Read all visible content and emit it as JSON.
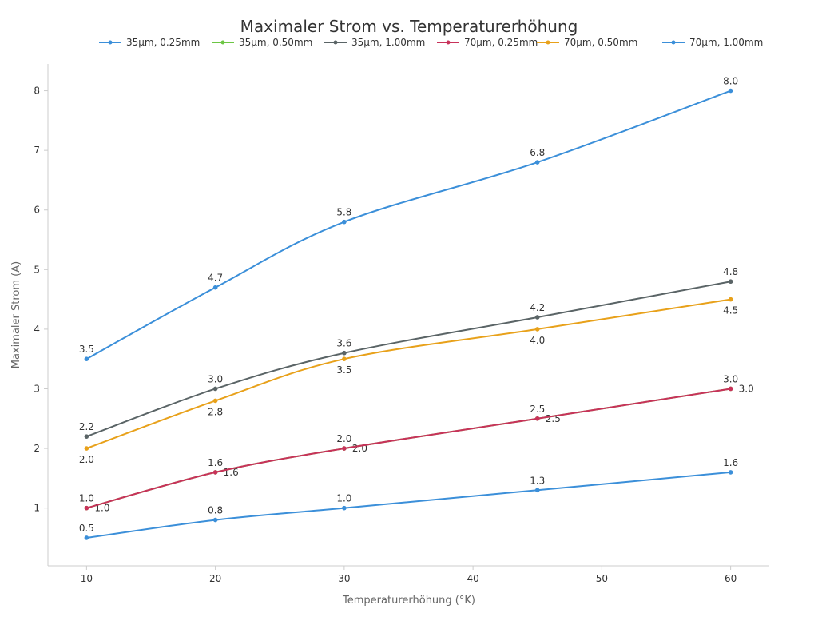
{
  "chart_data": {
    "type": "line",
    "title": "Maximaler Strom vs. Temperaturerhöhung",
    "xlabel": "Temperaturerhöhung (°K)",
    "ylabel": "Maximaler Strom (A)",
    "x": [
      10,
      20,
      30,
      45,
      60
    ],
    "xlim": [
      7,
      63
    ],
    "ylim": [
      0.03,
      8.45
    ],
    "xticks": [
      10,
      20,
      30,
      40,
      50,
      60
    ],
    "yticks": [
      1,
      2,
      3,
      4,
      5,
      6,
      7,
      8
    ],
    "grid": false,
    "legend": "top",
    "smooth": true,
    "series": [
      {
        "name": "35µm, 0.25mm",
        "color": "#3b8fd9",
        "values": [
          0.5,
          0.8,
          1.0,
          1.3,
          1.6
        ]
      },
      {
        "name": "35µm, 0.50mm",
        "color": "#6cc644",
        "values": [
          1.0,
          1.6,
          2.0,
          2.5,
          3.0
        ]
      },
      {
        "name": "35µm, 1.00mm",
        "color": "#5a6466",
        "values": [
          2.2,
          3.0,
          3.6,
          4.2,
          4.8
        ]
      },
      {
        "name": "70µm, 0.25mm",
        "color": "#c8325a",
        "values": [
          1.0,
          1.6,
          2.0,
          2.5,
          3.0
        ]
      },
      {
        "name": "70µm, 0.50mm",
        "color": "#e8a11a",
        "values": [
          2.0,
          2.8,
          3.5,
          4.0,
          4.5
        ]
      },
      {
        "name": "70µm, 1.00mm",
        "color": "#3b8fd9",
        "values": [
          3.5,
          4.7,
          5.8,
          6.8,
          8.0
        ]
      }
    ]
  }
}
